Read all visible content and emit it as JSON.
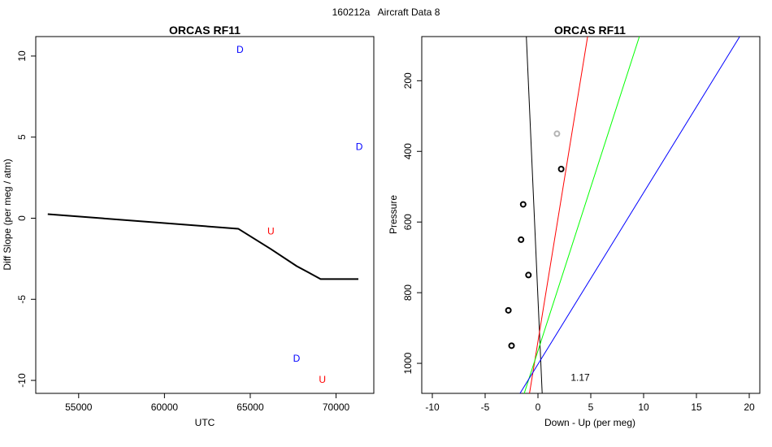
{
  "figure": {
    "suptitle": "160212a   Aircraft Data 8"
  },
  "chart_data": [
    {
      "type": "line",
      "title": "ORCAS RF11",
      "xlabel": "UTC",
      "ylabel": "Diff Slope (per meg / atm)",
      "xlim": [
        52500,
        72200
      ],
      "ylim": [
        -10.8,
        11.2
      ],
      "xticks": [
        55000,
        60000,
        65000,
        70000
      ],
      "xtick_labels": [
        "55000",
        "60000",
        "65000",
        "70000"
      ],
      "yticks": [
        -10,
        -5,
        0,
        5,
        10
      ],
      "ytick_labels": [
        "-10",
        "-5",
        "0",
        "5",
        "10"
      ],
      "grid": false,
      "series": [
        {
          "color": "#000000",
          "x": [
            53200,
            64300,
            66200,
            67700,
            69100,
            71300
          ],
          "y": [
            0.25,
            -0.65,
            -1.9,
            -2.95,
            -3.75,
            -3.75
          ]
        }
      ],
      "annotations": [
        {
          "text": "D",
          "x": 64400,
          "y": 10.4,
          "color": "#0000ff"
        },
        {
          "text": "D",
          "x": 71350,
          "y": 4.4,
          "color": "#0000ff"
        },
        {
          "text": "U",
          "x": 66200,
          "y": -0.8,
          "color": "#ff0000"
        },
        {
          "text": "D",
          "x": 67700,
          "y": -8.65,
          "color": "#0000ff"
        },
        {
          "text": "U",
          "x": 69200,
          "y": -9.95,
          "color": "#ff0000"
        }
      ]
    },
    {
      "type": "scatter",
      "title": "ORCAS RF11",
      "xlabel": "Down - Up (per meg)",
      "ylabel": "Pressure",
      "xlim": [
        -11,
        21
      ],
      "ylim": [
        1085,
        75
      ],
      "y_reversed": true,
      "xticks": [
        -10,
        -5,
        0,
        5,
        10,
        15,
        20
      ],
      "xtick_labels": [
        "-10",
        "-5",
        "0",
        "5",
        "10",
        "15",
        "20"
      ],
      "yticks": [
        200,
        400,
        600,
        800,
        1000
      ],
      "ytick_labels": [
        "200",
        "400",
        "600",
        "800",
        "1000"
      ],
      "grid": false,
      "points": [
        {
          "x": 1.8,
          "y": 350,
          "color": "#b3b3b3"
        },
        {
          "x": 2.2,
          "y": 450,
          "color": "#000000"
        },
        {
          "x": -1.4,
          "y": 550,
          "color": "#000000"
        },
        {
          "x": -1.6,
          "y": 650,
          "color": "#000000"
        },
        {
          "x": -0.9,
          "y": 750,
          "color": "#000000"
        },
        {
          "x": -2.8,
          "y": 850,
          "color": "#000000"
        },
        {
          "x": -2.5,
          "y": 950,
          "color": "#000000"
        }
      ],
      "lines": [
        {
          "color": "#000000",
          "x": [
            -1.1,
            0.4
          ],
          "y": [
            75,
            1085
          ]
        },
        {
          "color": "#ff0000",
          "x": [
            4.7,
            -0.8
          ],
          "y": [
            75,
            1085
          ]
        },
        {
          "color": "#00ff00",
          "x": [
            9.6,
            -1.3
          ],
          "y": [
            75,
            1085
          ]
        },
        {
          "color": "#0000ff",
          "x": [
            19.1,
            -1.7
          ],
          "y": [
            75,
            1085
          ]
        }
      ],
      "annotations": [
        {
          "text": "1.17",
          "x": 4.0,
          "y": 1040,
          "color": "#000000"
        }
      ]
    }
  ]
}
